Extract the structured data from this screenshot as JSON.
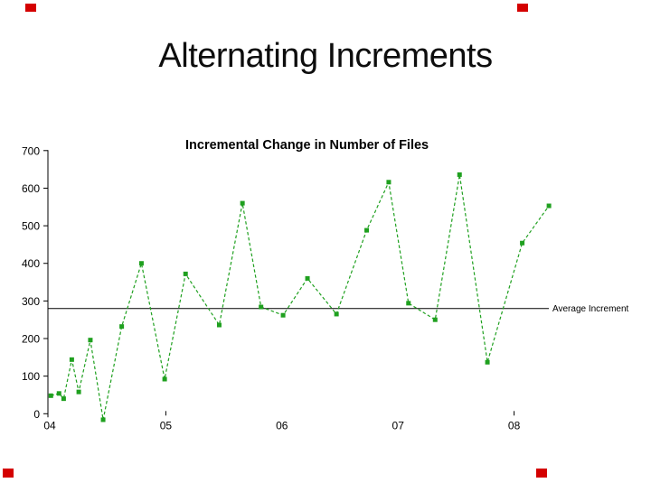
{
  "slide": {
    "title": "Alternating Increments"
  },
  "colors": {
    "series_green": "#1fa01f",
    "axis_black": "#000000",
    "corner_marker_red": "#d40000"
  },
  "chart_data": {
    "type": "line",
    "title": "Incremental Change in Number of Files",
    "xlabel": "",
    "ylabel": "",
    "grid": false,
    "x_axis": {
      "tick_labels": [
        "04",
        "05",
        "06",
        "07",
        "08"
      ],
      "tick_values": [
        2004,
        2005,
        2006,
        2007,
        2008
      ],
      "tick_marks_visible_at": [
        2005,
        2008
      ],
      "range": [
        2004,
        2009
      ]
    },
    "y_axis": {
      "ticks": [
        0,
        100,
        200,
        300,
        400,
        500,
        600,
        700
      ],
      "range": [
        0,
        700
      ]
    },
    "average_line": {
      "value": 280,
      "label": "Average Increment"
    },
    "series": [
      {
        "name": "Incremental change in number of files",
        "color": "#1fa01f",
        "marker": "square",
        "line_style": "dashed",
        "points": [
          {
            "x": 2004.01,
            "y": 48
          },
          {
            "x": 2004.08,
            "y": 54
          },
          {
            "x": 2004.12,
            "y": 40
          },
          {
            "x": 2004.19,
            "y": 144
          },
          {
            "x": 2004.25,
            "y": 58
          },
          {
            "x": 2004.35,
            "y": 196
          },
          {
            "x": 2004.46,
            "y": -16
          },
          {
            "x": 2004.62,
            "y": 232
          },
          {
            "x": 2004.79,
            "y": 400
          },
          {
            "x": 2004.99,
            "y": 92
          },
          {
            "x": 2005.17,
            "y": 372
          },
          {
            "x": 2005.46,
            "y": 236
          },
          {
            "x": 2005.66,
            "y": 560
          },
          {
            "x": 2005.82,
            "y": 284
          },
          {
            "x": 2006.01,
            "y": 262
          },
          {
            "x": 2006.22,
            "y": 360
          },
          {
            "x": 2006.47,
            "y": 265
          },
          {
            "x": 2006.73,
            "y": 488
          },
          {
            "x": 2006.92,
            "y": 616
          },
          {
            "x": 2007.09,
            "y": 294
          },
          {
            "x": 2007.32,
            "y": 250
          },
          {
            "x": 2007.53,
            "y": 636
          },
          {
            "x": 2007.77,
            "y": 137
          },
          {
            "x": 2008.07,
            "y": 454
          },
          {
            "x": 2008.3,
            "y": 553
          }
        ]
      }
    ]
  }
}
